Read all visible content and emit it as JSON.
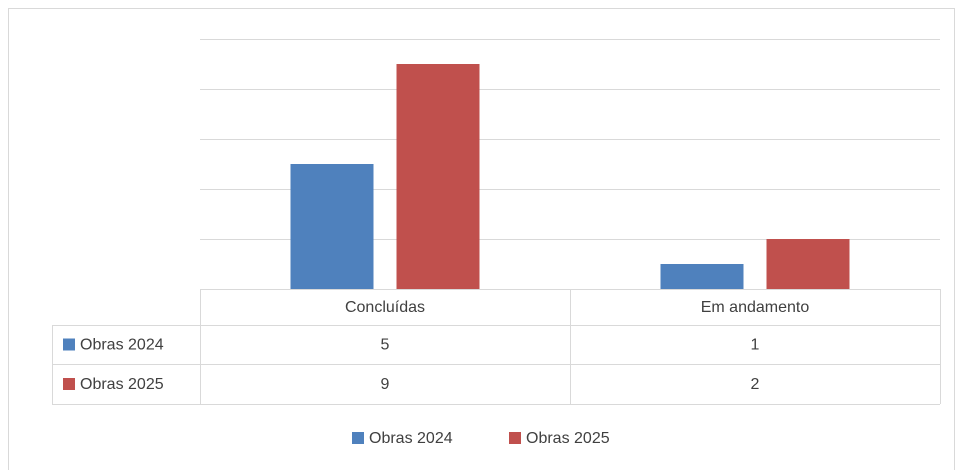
{
  "chart_data": {
    "type": "bar",
    "categories": [
      "Concluídas",
      "Em andamento"
    ],
    "series": [
      {
        "name": "Obras 2024",
        "color": "#4f81bd",
        "values": [
          5,
          1
        ]
      },
      {
        "name": "Obras 2025",
        "color": "#c0504d",
        "values": [
          9,
          2
        ]
      }
    ],
    "ylim": [
      0,
      10
    ],
    "yticks": [
      0,
      2,
      4,
      6,
      8,
      10
    ],
    "grid": true
  }
}
